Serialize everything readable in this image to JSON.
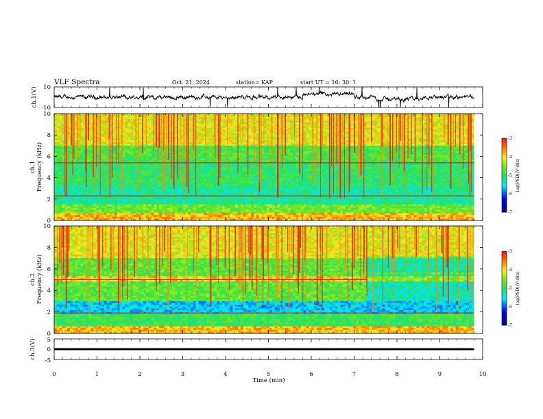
{
  "header": {
    "title": "VLF Spectra",
    "date": "Oct. 21, 2024",
    "station": "station= KAP",
    "start": "start  UT =   16: 30: 1"
  },
  "panels": {
    "ch1_wave": {
      "ylabel": "ch.1(V)",
      "ytick_top": "10",
      "ytick_bottom": "-10"
    },
    "ch1_spec": {
      "ylabel_ch": "ch.1",
      "ylabel": "Frequency  (kHz)"
    },
    "ch2_spec": {
      "ylabel_ch": "ch.2",
      "ylabel": "Frequency  (kHz)"
    },
    "ch3_wave": {
      "ylabel": "ch.3(V)",
      "ytick_top": "5",
      "ytick_mid": "0",
      "ytick_bottom": "-5"
    }
  },
  "xaxis": {
    "label": "Time  (min)"
  },
  "colorbar": {
    "label": "log(PSD)(V²/Hz)",
    "ticks": [
      "-3",
      "-4",
      "-5",
      "-6",
      "-7"
    ]
  },
  "chart_data": [
    {
      "type": "line",
      "name": "ch.1 waveform",
      "ylabel": "ch.1(V)",
      "ylim": [
        -10,
        10
      ],
      "xlim": [
        0,
        10
      ],
      "x_extent": [
        0,
        9.8
      ]
    },
    {
      "type": "heatmap",
      "name": "ch.1 spectrogram",
      "xlabel": "Time  (min)",
      "ylabel": "Frequency  (kHz)",
      "xlim": [
        0,
        10
      ],
      "ylim": [
        0,
        10
      ],
      "x_ticks": [
        "0",
        "1",
        "2",
        "3",
        "4",
        "5",
        "6",
        "7",
        "8",
        "9",
        "10"
      ],
      "y_ticks": [
        "0",
        "2",
        "4",
        "6",
        "8",
        "10"
      ],
      "color_scale": {
        "label": "log(PSD)(V²/Hz)",
        "min": -7,
        "max": -3
      },
      "bands_khz": [
        {
          "from": 0,
          "to": 0.6,
          "level": -3.8
        },
        {
          "from": 0.6,
          "to": 1.5,
          "level": -4.6
        },
        {
          "from": 1.5,
          "to": 3.2,
          "level": -5.2
        },
        {
          "from": 3.2,
          "to": 5.5,
          "level": -5.0
        },
        {
          "from": 5.5,
          "to": 7.0,
          "level": -4.8
        },
        {
          "from": 7.0,
          "to": 10,
          "level": -4.1
        }
      ],
      "lines_khz": [
        2.3,
        5.4
      ]
    },
    {
      "type": "heatmap",
      "name": "ch.2 spectrogram",
      "xlabel": "Time  (min)",
      "ylabel": "Frequency  (kHz)",
      "xlim": [
        0,
        10
      ],
      "ylim": [
        0,
        10
      ],
      "x_ticks": [
        "0",
        "1",
        "2",
        "3",
        "4",
        "5",
        "6",
        "7",
        "8",
        "9",
        "10"
      ],
      "y_ticks": [
        "0",
        "2",
        "4",
        "6",
        "8",
        "10"
      ],
      "color_scale": {
        "label": "log(PSD)(V²/Hz)",
        "min": -7,
        "max": -3
      },
      "bands_khz": [
        {
          "from": 0,
          "to": 0.6,
          "level": -3.8
        },
        {
          "from": 0.6,
          "to": 1.8,
          "level": -4.9
        },
        {
          "from": 1.8,
          "to": 3.0,
          "level": -5.6
        },
        {
          "from": 3.0,
          "to": 4.8,
          "level": -4.7
        },
        {
          "from": 4.8,
          "to": 5.4,
          "level": -3.9
        },
        {
          "from": 5.4,
          "to": 7.0,
          "level": -4.7
        },
        {
          "from": 7.0,
          "to": 10,
          "level": -4.1
        }
      ],
      "lines_khz": [
        1.9,
        5.0
      ],
      "change_at_min": 7.3
    },
    {
      "type": "line",
      "name": "ch.3 waveform",
      "xlabel": "Time  (min)",
      "ylabel": "ch.3(V)",
      "ylim": [
        -5,
        5
      ],
      "xlim": [
        0,
        10
      ],
      "x_extent": [
        0,
        9.8
      ],
      "band_v": [
        -0.5,
        0.5
      ]
    }
  ]
}
